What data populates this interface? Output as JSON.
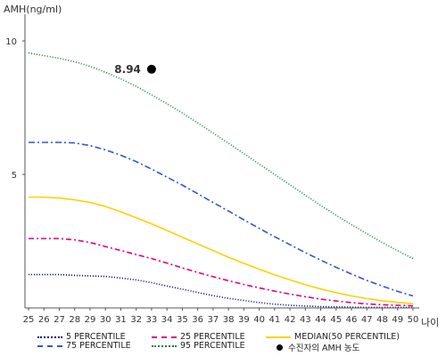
{
  "chart_data": {
    "type": "line",
    "ylabel": "AMH(ng/ml)",
    "xlabel": "나이",
    "xlim": [
      25,
      50
    ],
    "ylim": [
      0,
      11
    ],
    "yticks": [
      5,
      10
    ],
    "x": [
      25,
      26,
      27,
      28,
      29,
      30,
      31,
      32,
      33,
      34,
      35,
      36,
      37,
      38,
      39,
      40,
      41,
      42,
      43,
      44,
      45,
      46,
      47,
      48,
      49,
      50
    ],
    "series": [
      {
        "name": "5 PERCENTILE",
        "color": "#000080",
        "dash": "1,2",
        "values": [
          1.25,
          1.25,
          1.25,
          1.22,
          1.2,
          1.18,
          1.12,
          1.05,
          0.95,
          0.82,
          0.7,
          0.58,
          0.46,
          0.36,
          0.28,
          0.2,
          0.14,
          0.1,
          0.07,
          0.05,
          0.04,
          0.03,
          0.02,
          0.02,
          0.02,
          0.02
        ]
      },
      {
        "name": "25 PERCENTILE",
        "color": "#e0007f",
        "dash": "6,3,2,3",
        "values": [
          2.6,
          2.6,
          2.6,
          2.55,
          2.45,
          2.3,
          2.15,
          2.0,
          1.85,
          1.68,
          1.5,
          1.33,
          1.17,
          1.02,
          0.88,
          0.75,
          0.63,
          0.52,
          0.42,
          0.33,
          0.26,
          0.2,
          0.15,
          0.12,
          0.1,
          0.08
        ]
      },
      {
        "name": "MEDIAN(50 PERCENTILE)",
        "color": "#ffd000",
        "dash": "",
        "values": [
          4.15,
          4.15,
          4.12,
          4.05,
          3.95,
          3.8,
          3.6,
          3.38,
          3.15,
          2.9,
          2.65,
          2.4,
          2.15,
          1.9,
          1.67,
          1.45,
          1.24,
          1.05,
          0.87,
          0.71,
          0.57,
          0.45,
          0.35,
          0.27,
          0.21,
          0.16
        ]
      },
      {
        "name": "75 PERCENTILE",
        "color": "#3355cc",
        "dash": "7,3,2,3",
        "values": [
          6.2,
          6.2,
          6.2,
          6.18,
          6.08,
          5.92,
          5.72,
          5.48,
          5.2,
          4.9,
          4.6,
          4.28,
          3.95,
          3.63,
          3.3,
          2.98,
          2.67,
          2.37,
          2.07,
          1.79,
          1.52,
          1.27,
          1.03,
          0.82,
          0.62,
          0.45
        ]
      },
      {
        "name": "95 PERCENTILE",
        "color": "#1e7f3e",
        "dash": "1,2",
        "values": [
          9.55,
          9.45,
          9.35,
          9.22,
          9.05,
          8.83,
          8.58,
          8.3,
          7.98,
          7.65,
          7.3,
          6.93,
          6.55,
          6.17,
          5.78,
          5.39,
          5.0,
          4.61,
          4.22,
          3.84,
          3.47,
          3.12,
          2.78,
          2.45,
          2.14,
          1.85
        ]
      }
    ],
    "marker": {
      "name": "수진자의 AMH 농도",
      "x": 33,
      "y": 8.94,
      "label": "8.94",
      "color": "#000000"
    },
    "legend_position": "bottom",
    "grid": false
  }
}
